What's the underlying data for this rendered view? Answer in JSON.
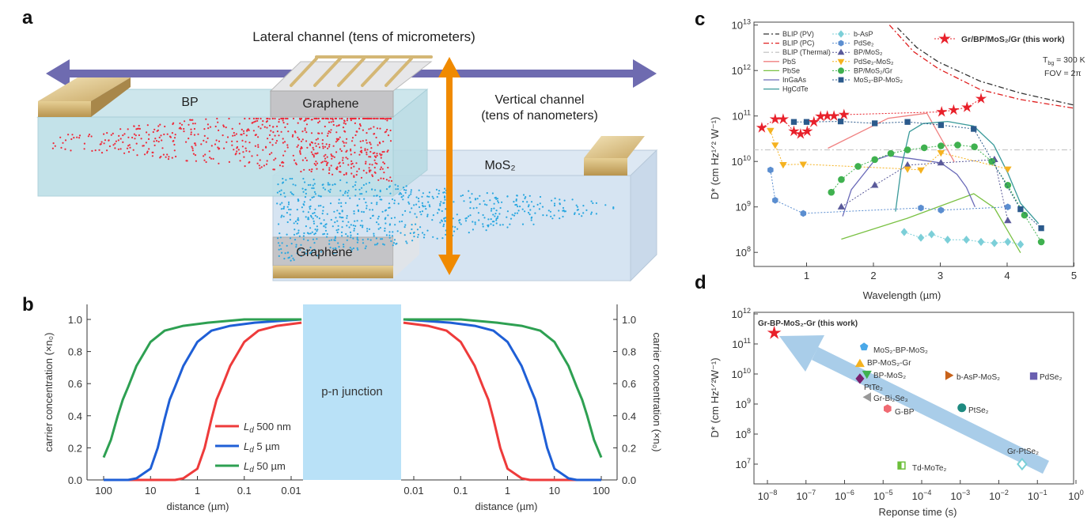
{
  "panel_labels": {
    "a": "a",
    "b": "b",
    "c": "c",
    "d": "d"
  },
  "panel_a": {
    "lateral_label": "Lateral channel (tens of micrometers)",
    "vertical_label_1": "Vertical channel",
    "vertical_label_2": "(tens of nanometers)",
    "bp_label": "BP",
    "graphene_top_label": "Graphene",
    "mos2_label": "MoS₂",
    "graphene_bottom_label": "Graphene",
    "colors": {
      "lateral_arrow": "#6e6bb0",
      "vertical_arrow": "#f08a00",
      "holes": "#ee2a3a",
      "electrons": "#2aa7e0",
      "contact": "#c9a865"
    }
  },
  "chart_data": [
    {
      "panel": "b",
      "type": "line",
      "xlabel": "distance (µm)",
      "ylabel": "carrier concentration (×n₀)",
      "xscale": "log",
      "x_reversed_left": true,
      "mirrored": true,
      "xticks": [
        "100",
        "10",
        "1",
        "0.1",
        "0.01"
      ],
      "xtick_values": [
        100,
        10,
        1,
        0.1,
        0.01
      ],
      "ylim": [
        0,
        1.0
      ],
      "yticks": [
        "0.0",
        "0.2",
        "0.4",
        "0.6",
        "0.8",
        "1.0"
      ],
      "annotation": "p-n junction",
      "junction_color": "#b9e1f7",
      "legend_position": "lower-center-left",
      "series": [
        {
          "symbol": "L",
          "sub": "d",
          "label": "500 nm",
          "color": "#ee3b3b",
          "x": [
            100,
            10,
            3,
            2,
            1,
            0.7,
            0.5,
            0.39,
            0.3,
            0.2,
            0.1,
            0.05,
            0.02,
            0.006
          ],
          "y": [
            0,
            0,
            0,
            0.01,
            0.07,
            0.2,
            0.38,
            0.5,
            0.58,
            0.71,
            0.86,
            0.93,
            0.96,
            0.98
          ]
        },
        {
          "symbol": "L",
          "sub": "d",
          "label": "5 µm",
          "color": "#1f5fd6",
          "x": [
            100,
            30,
            20,
            10,
            7,
            5,
            3.9,
            3,
            2,
            1,
            0.5,
            0.2,
            0.06,
            0.006
          ],
          "y": [
            0,
            0,
            0.01,
            0.07,
            0.2,
            0.38,
            0.5,
            0.58,
            0.71,
            0.86,
            0.93,
            0.96,
            0.98,
            1.0
          ]
        },
        {
          "symbol": "L",
          "sub": "d",
          "label": "50 µm",
          "color": "#2ea052",
          "x": [
            100,
            70,
            50,
            39,
            30,
            20,
            10,
            5,
            2,
            0.6,
            0.1,
            0.006
          ],
          "y": [
            0.14,
            0.25,
            0.4,
            0.5,
            0.58,
            0.71,
            0.86,
            0.93,
            0.96,
            0.98,
            1.0,
            1.0
          ]
        }
      ]
    },
    {
      "panel": "c",
      "type": "scatter",
      "xlabel": "Wavelength (µm)",
      "ylabel": "D* (cm Hz¹ᐟ² W⁻¹)",
      "xlim": [
        0.2,
        5
      ],
      "xticks": [
        1,
        2,
        3,
        4,
        5
      ],
      "yscale": "log",
      "ylim": [
        50000000.0,
        11500000000000.0
      ],
      "ytick_exponents": [
        8,
        9,
        10,
        11,
        12,
        13
      ],
      "annotations": [
        "T",
        "bg",
        " = 300 K",
        "FOV = 2π"
      ],
      "legend_position": "top-left",
      "lines": [
        {
          "name": "BLIP (PV)",
          "color": "#333333",
          "dash": "dashdot",
          "x": [
            2.36,
            2.65,
            2.97,
            3.6,
            4.2,
            5.0
          ],
          "y": [
            8700000000000.0,
            3200000000000.0,
            1550000000000.0,
            580000000000.0,
            320000000000.0,
            174000000000.0
          ]
        },
        {
          "name": "BLIP (PC)",
          "color": "#e02020",
          "dash": "dashdot",
          "x": [
            2.24,
            2.6,
            2.97,
            3.6,
            4.2,
            5.0
          ],
          "y": [
            10000000000000.0,
            2600000000000.0,
            1100000000000.0,
            380000000000.0,
            230000000000.0,
            148000000000.0
          ]
        },
        {
          "name": "BLIP (Thermal)",
          "color": "#c8c8c8",
          "dash": "dashdot",
          "x": [
            0.2,
            5.0
          ],
          "y": [
            18000000000.0,
            18000000000.0
          ]
        },
        {
          "name": "PbS",
          "color": "#f08080",
          "dash": "solid",
          "x": [
            1.32,
            2.22,
            2.8,
            3.21
          ],
          "y": [
            19500000000.0,
            89000000000.0,
            115000000000.0,
            9800000000.0
          ]
        },
        {
          "name": "PbSe",
          "color": "#7ac143",
          "dash": "solid",
          "x": [
            1.52,
            2.5,
            3.5,
            3.81,
            4.2
          ],
          "y": [
            195000000.0,
            560000000.0,
            1950000000.0,
            950000000.0,
            98000000.0
          ]
        },
        {
          "name": "InGaAs",
          "color": "#6a6ab8",
          "dash": "solid",
          "x": [
            1.54,
            1.67,
            2.02,
            2.22,
            2.54,
            3.01,
            3.25,
            3.39,
            3.52
          ],
          "y": [
            620000000.0,
            2400000000.0,
            10700000000.0,
            13500000000.0,
            11700000000.0,
            9300000000.0,
            5200000000.0,
            2700000000.0,
            1000000000.0
          ]
        },
        {
          "name": "HgCdTe",
          "color": "#3a9a9a",
          "dash": "solid",
          "x": [
            2.33,
            2.42,
            2.54,
            2.74,
            3.11,
            3.5,
            3.8,
            4.01,
            4.2,
            4.47
          ],
          "y": [
            790000000.0,
            7900000000.0,
            45000000000.0,
            68000000000.0,
            76000000000.0,
            60000000000.0,
            23000000000.0,
            5600000000.0,
            1200000000.0,
            430000000.0
          ]
        }
      ],
      "series": [
        {
          "name": "b-AsP",
          "marker": "diamond",
          "color": "#7ccfd8",
          "x": [
            2.46,
            2.71,
            2.87,
            3.11,
            3.39,
            3.61,
            3.81,
            4.01,
            4.2
          ],
          "y": [
            280000000.0,
            210000000.0,
            250000000.0,
            190000000.0,
            190000000.0,
            170000000.0,
            160000000.0,
            170000000.0,
            150000000.0
          ]
        },
        {
          "name": "PdSe₂",
          "marker": "hexagon",
          "color": "#5b8ed0",
          "x": [
            0.46,
            0.53,
            0.95,
            2.71,
            3.01,
            4.01
          ],
          "y": [
            6500000000.0,
            1400000000.0,
            720000000.0,
            950000000.0,
            850000000.0,
            1000000000.0
          ]
        },
        {
          "name": "BP/MoS₂",
          "marker": "triangle-up",
          "color": "#5a5a9a",
          "x": [
            1.52,
            2.02,
            2.51,
            3.01,
            3.81,
            4.01
          ],
          "y": [
            1000000000.0,
            3000000000.0,
            8300000000.0,
            9300000000.0,
            11000000000.0,
            500000000.0
          ]
        },
        {
          "name": "PdSe₂-MoS₂",
          "marker": "triangle-down",
          "color": "#f5b21f",
          "x": [
            0.46,
            0.53,
            0.65,
            0.95,
            2.51,
            2.71,
            3.01,
            4.01
          ],
          "y": [
            48000000000.0,
            23000000000.0,
            8500000000.0,
            8700000000.0,
            6800000000.0,
            6500000000.0,
            15500000000.0,
            6800000000.0
          ]
        },
        {
          "name": "BP/MoS₂/Gr",
          "marker": "circle",
          "color": "#3fb14f",
          "x": [
            1.37,
            1.52,
            1.77,
            2.02,
            2.26,
            2.51,
            2.76,
            3.01,
            3.26,
            3.51,
            3.77,
            4.01,
            4.26,
            4.51
          ],
          "y": [
            2100000000.0,
            4000000000.0,
            7800000000.0,
            11000000000.0,
            15000000000.0,
            18000000000.0,
            20000000000.0,
            22000000000.0,
            23000000000.0,
            21000000000.0,
            10000000000.0,
            3000000000.0,
            660000000.0,
            170000000.0
          ]
        },
        {
          "name": "MoS₂-BP-MoS₂",
          "marker": "square",
          "color": "#2b5a8c",
          "x": [
            0.81,
            1.0,
            1.51,
            2.02,
            2.51,
            3.01,
            3.5,
            4.2,
            4.51
          ],
          "y": [
            74000000000.0,
            74000000000.0,
            76000000000.0,
            69000000000.0,
            74000000000.0,
            63000000000.0,
            52000000000.0,
            890000000.0,
            340000000.0
          ]
        },
        {
          "name": "Gr/BP/MoS₂/Gr (this work)",
          "marker": "star",
          "color": "#e8202a",
          "highlight": true,
          "x": [
            0.33,
            0.53,
            0.65,
            0.81,
            0.91,
            1.01,
            1.11,
            1.21,
            1.31,
            1.41,
            1.56,
            3.02,
            3.2,
            3.4,
            3.61
          ],
          "y": [
            55000000000.0,
            85000000000.0,
            85000000000.0,
            46000000000.0,
            40000000000.0,
            46000000000.0,
            74000000000.0,
            98000000000.0,
            100000000000.0,
            100000000000.0,
            107000000000.0,
            123000000000.0,
            135000000000.0,
            155000000000.0,
            240000000000.0
          ]
        }
      ]
    },
    {
      "panel": "d",
      "type": "scatter",
      "xlabel": "Reponse time (s)",
      "ylabel": "D* (cm Hz¹ᐟ²W⁻¹)",
      "xscale": "log",
      "xlim": [
        4.5e-09,
        1
      ],
      "xtick_exponents": [
        -8,
        -7,
        -6,
        -5,
        -4,
        -3,
        -2,
        -1,
        0
      ],
      "yscale": "log",
      "ylim": [
        2500000.0,
        1100000000000.0
      ],
      "ytick_exponents": [
        7,
        8,
        9,
        10,
        11,
        12
      ],
      "trend_arrow_color": "#a9cde9",
      "points": [
        {
          "label": "Gr-BP-MoS₂-Gr (this work)",
          "marker": "star",
          "color": "#e8202a",
          "x": 1.5e-08,
          "y": 230000000000.0,
          "bold": true
        },
        {
          "label": "MoS₂-BP-MoS₂",
          "marker": "pentagon",
          "color": "#4aa8e8",
          "x": 3.2e-06,
          "y": 80000000000.0
        },
        {
          "label": "BP-MoS₂-Gr",
          "marker": "triangle-up",
          "color": "#f5b21f",
          "x": 2.5e-06,
          "y": 22000000000.0
        },
        {
          "label": "BP-MoS₂",
          "marker": "triangle-down",
          "color": "#3fb14f",
          "x": 3.8e-06,
          "y": 10000000000.0
        },
        {
          "label": "PtTe₂",
          "marker": "diamond",
          "color": "#7a1f6e",
          "x": 2.5e-06,
          "y": 7000000000.0
        },
        {
          "label": "Gr-Bi₂Se₃",
          "marker": "triangle-left",
          "color": "#999999",
          "x": 4e-06,
          "y": 1700000000.0
        },
        {
          "label": "G-BP",
          "marker": "hexagon",
          "color": "#f06a72",
          "x": 1.3e-05,
          "y": 700000000.0
        },
        {
          "label": "PtSe₂",
          "marker": "circle",
          "color": "#1e8a80",
          "x": 0.0011,
          "y": 750000000.0
        },
        {
          "label": "b-AsP-MoS₂",
          "marker": "triangle-right",
          "color": "#c8621a",
          "x": 0.0005,
          "y": 9000000000.0
        },
        {
          "label": "PdSe₂",
          "marker": "square",
          "color": "#6a5fb0",
          "x": 0.08,
          "y": 8500000000.0
        },
        {
          "label": "Gr-PtSe₂",
          "marker": "diamond-open",
          "color": "#7ad0d8",
          "x": 0.04,
          "y": 10000000.0
        },
        {
          "label": "Td-MoTe₂",
          "marker": "square-half",
          "color": "#6cbf3a",
          "x": 3e-05,
          "y": 9000000.0
        }
      ]
    }
  ]
}
